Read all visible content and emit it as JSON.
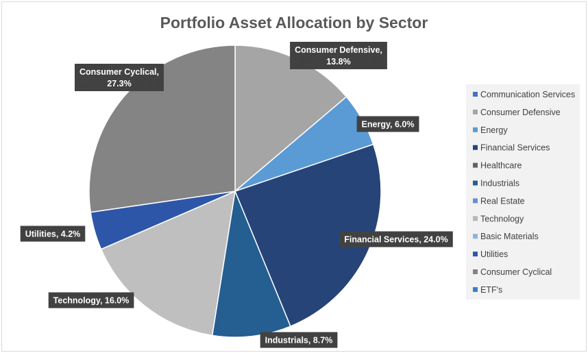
{
  "chart_data": {
    "type": "pie",
    "title": "Portfolio Asset Allocation by Sector",
    "start_angle_deg": 0,
    "slices": [
      {
        "label": "Consumer Defensive",
        "value": 13.8,
        "display": "Consumer Defensive,\n13.8%",
        "color": "#A5A5A5"
      },
      {
        "label": "Energy",
        "value": 6.0,
        "display": "Energy, 6.0%",
        "color": "#5B9BD5"
      },
      {
        "label": "Financial Services",
        "value": 24.0,
        "display": "Financial Services, 24.0%",
        "color": "#264478"
      },
      {
        "label": "Industrials",
        "value": 8.7,
        "display": "Industrials, 8.7%",
        "color": "#255E91"
      },
      {
        "label": "Technology",
        "value": 16.0,
        "display": "Technology, 16.0%",
        "color": "#BFBFBF"
      },
      {
        "label": "Utilities",
        "value": 4.2,
        "display": "Utilities, 4.2%",
        "color": "#2E56A8"
      },
      {
        "label": "Consumer Cyclical",
        "value": 27.3,
        "display": "Consumer Cyclical,\n27.3%",
        "color": "#848484"
      }
    ],
    "legend": {
      "position": "right",
      "entries": [
        {
          "label": "Communication Services",
          "color": "#4472C4"
        },
        {
          "label": "Consumer Defensive",
          "color": "#A5A5A5"
        },
        {
          "label": "Energy",
          "color": "#5B9BD5"
        },
        {
          "label": "Financial Services",
          "color": "#264478"
        },
        {
          "label": "Healthcare",
          "color": "#636363"
        },
        {
          "label": "Industrials",
          "color": "#255E91"
        },
        {
          "label": "Real Estate",
          "color": "#698ED0"
        },
        {
          "label": "Technology",
          "color": "#B7B7B7"
        },
        {
          "label": "Basic Materials",
          "color": "#8CB4E0"
        },
        {
          "label": "Utilities",
          "color": "#2E56A8"
        },
        {
          "label": "Consumer Cyclical",
          "color": "#848484"
        },
        {
          "label": "ETF's",
          "color": "#3C7DC4"
        }
      ]
    }
  }
}
